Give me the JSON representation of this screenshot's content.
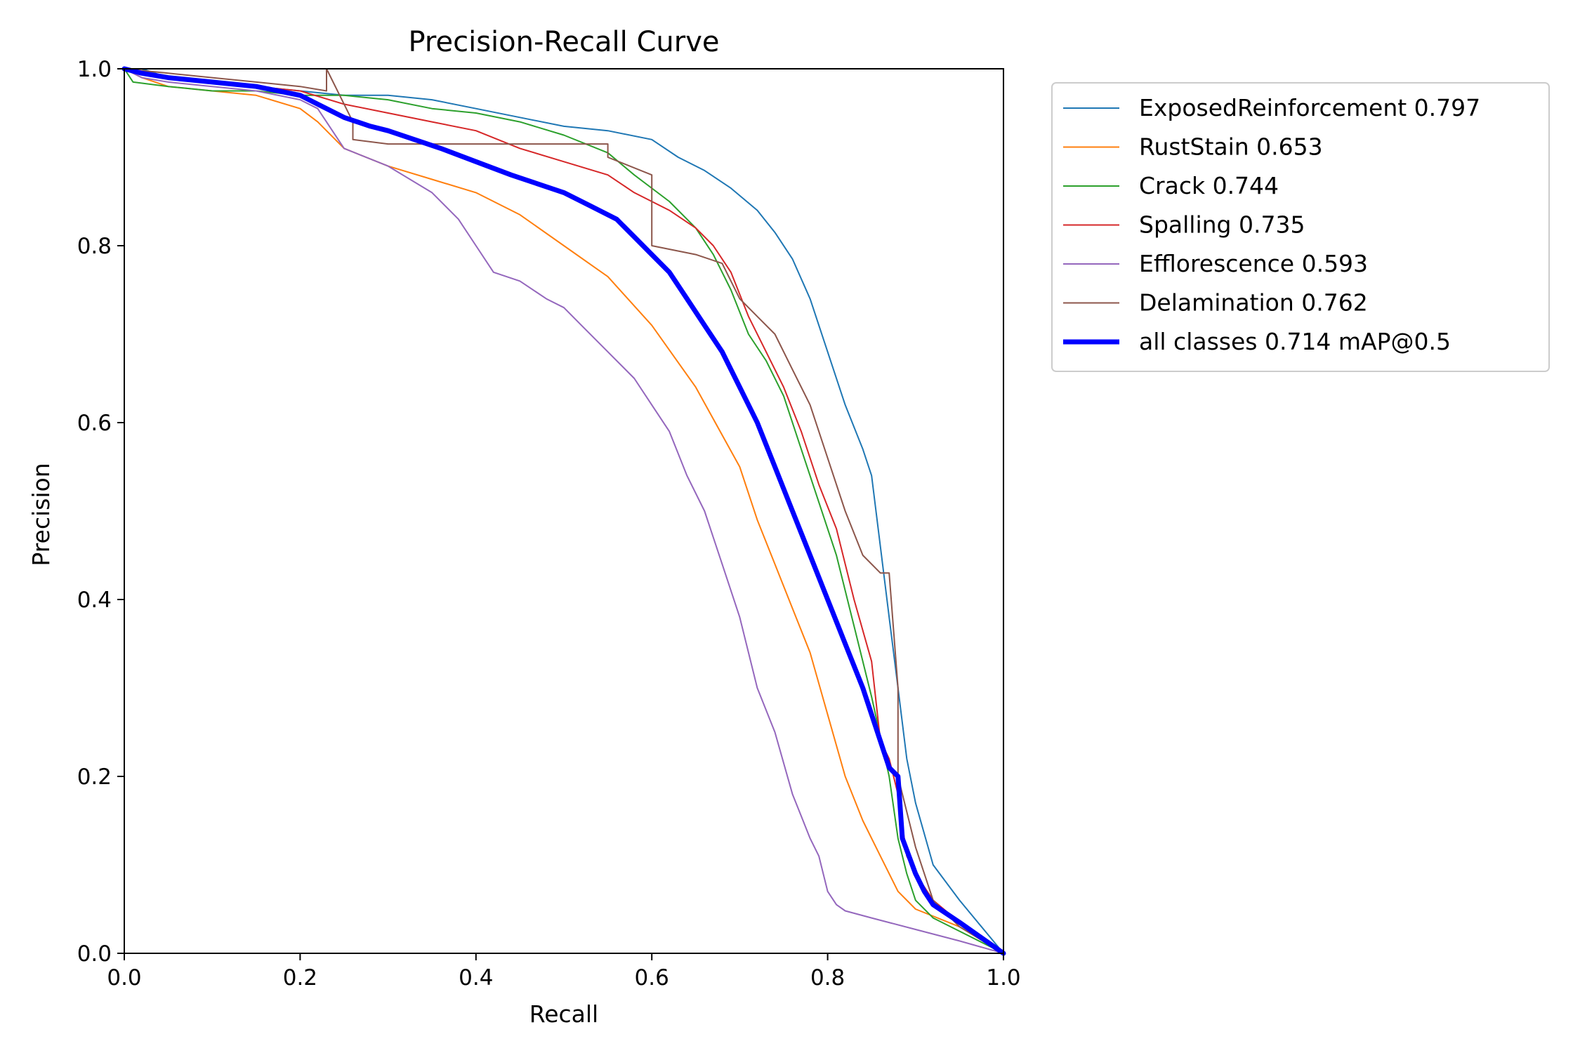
{
  "chart_data": {
    "type": "line",
    "title": "Precision-Recall Curve",
    "xlabel": "Recall",
    "ylabel": "Precision",
    "xlim": [
      0.0,
      1.0
    ],
    "ylim": [
      0.0,
      1.0
    ],
    "xticks": [
      "0.0",
      "0.2",
      "0.4",
      "0.6",
      "0.8",
      "1.0"
    ],
    "yticks": [
      "0.0",
      "0.2",
      "0.4",
      "0.6",
      "0.8",
      "1.0"
    ],
    "grid": false,
    "legend_position": "outside-right-top",
    "series": [
      {
        "name": "ExposedReinforcement 0.797",
        "color": "#1f77b4",
        "width": 2,
        "x": [
          0.0,
          0.02,
          0.05,
          0.1,
          0.15,
          0.2,
          0.25,
          0.3,
          0.35,
          0.4,
          0.45,
          0.5,
          0.55,
          0.6,
          0.63,
          0.66,
          0.69,
          0.72,
          0.74,
          0.76,
          0.78,
          0.8,
          0.82,
          0.84,
          0.85,
          0.86,
          0.87,
          0.88,
          0.89,
          0.9,
          0.92,
          0.95,
          1.0
        ],
        "y": [
          1.0,
          1.0,
          0.99,
          0.985,
          0.98,
          0.975,
          0.97,
          0.97,
          0.965,
          0.955,
          0.945,
          0.935,
          0.93,
          0.92,
          0.9,
          0.885,
          0.865,
          0.84,
          0.815,
          0.785,
          0.74,
          0.68,
          0.62,
          0.57,
          0.54,
          0.46,
          0.38,
          0.3,
          0.22,
          0.17,
          0.1,
          0.06,
          0.0
        ]
      },
      {
        "name": "RustStain 0.653",
        "color": "#ff7f0e",
        "width": 2,
        "x": [
          0.0,
          0.02,
          0.05,
          0.1,
          0.15,
          0.2,
          0.22,
          0.25,
          0.3,
          0.35,
          0.4,
          0.45,
          0.5,
          0.55,
          0.6,
          0.65,
          0.7,
          0.72,
          0.74,
          0.76,
          0.78,
          0.8,
          0.82,
          0.84,
          0.86,
          0.88,
          0.9,
          0.95,
          1.0
        ],
        "y": [
          1.0,
          0.99,
          0.98,
          0.975,
          0.97,
          0.955,
          0.94,
          0.91,
          0.89,
          0.875,
          0.86,
          0.835,
          0.8,
          0.765,
          0.71,
          0.64,
          0.55,
          0.49,
          0.44,
          0.39,
          0.34,
          0.27,
          0.2,
          0.15,
          0.11,
          0.07,
          0.05,
          0.03,
          0.0
        ]
      },
      {
        "name": "Crack 0.744",
        "color": "#2ca02c",
        "width": 2,
        "x": [
          0.0,
          0.01,
          0.05,
          0.1,
          0.15,
          0.2,
          0.25,
          0.3,
          0.35,
          0.4,
          0.45,
          0.5,
          0.55,
          0.58,
          0.62,
          0.65,
          0.67,
          0.69,
          0.71,
          0.73,
          0.75,
          0.77,
          0.79,
          0.81,
          0.83,
          0.85,
          0.87,
          0.88,
          0.89,
          0.9,
          0.92,
          0.95,
          1.0
        ],
        "y": [
          1.0,
          0.985,
          0.98,
          0.975,
          0.975,
          0.97,
          0.97,
          0.965,
          0.955,
          0.95,
          0.94,
          0.925,
          0.905,
          0.88,
          0.85,
          0.82,
          0.79,
          0.75,
          0.7,
          0.67,
          0.63,
          0.57,
          0.51,
          0.45,
          0.37,
          0.29,
          0.2,
          0.13,
          0.09,
          0.06,
          0.04,
          0.025,
          0.0
        ]
      },
      {
        "name": "Spalling 0.735",
        "color": "#d62728",
        "width": 2,
        "x": [
          0.0,
          0.02,
          0.05,
          0.1,
          0.15,
          0.2,
          0.25,
          0.3,
          0.35,
          0.4,
          0.45,
          0.5,
          0.55,
          0.58,
          0.6,
          0.62,
          0.65,
          0.67,
          0.69,
          0.71,
          0.73,
          0.75,
          0.77,
          0.79,
          0.81,
          0.83,
          0.85,
          0.86,
          0.87,
          0.88,
          0.89,
          0.9,
          0.92,
          0.95,
          1.0
        ],
        "y": [
          1.0,
          0.995,
          0.99,
          0.985,
          0.98,
          0.975,
          0.96,
          0.95,
          0.94,
          0.93,
          0.91,
          0.895,
          0.88,
          0.86,
          0.85,
          0.84,
          0.82,
          0.8,
          0.77,
          0.72,
          0.68,
          0.64,
          0.59,
          0.53,
          0.48,
          0.4,
          0.33,
          0.24,
          0.22,
          0.18,
          0.11,
          0.09,
          0.06,
          0.035,
          0.0
        ]
      },
      {
        "name": "Efflorescence 0.593",
        "color": "#9467bd",
        "width": 2,
        "x": [
          0.0,
          0.02,
          0.05,
          0.1,
          0.15,
          0.2,
          0.22,
          0.25,
          0.3,
          0.35,
          0.38,
          0.4,
          0.42,
          0.45,
          0.48,
          0.5,
          0.52,
          0.55,
          0.58,
          0.6,
          0.62,
          0.64,
          0.66,
          0.68,
          0.7,
          0.72,
          0.74,
          0.76,
          0.78,
          0.79,
          0.8,
          0.81,
          0.82,
          0.85,
          0.9,
          0.95,
          1.0
        ],
        "y": [
          1.0,
          0.99,
          0.985,
          0.98,
          0.975,
          0.965,
          0.955,
          0.91,
          0.89,
          0.86,
          0.83,
          0.8,
          0.77,
          0.76,
          0.74,
          0.73,
          0.71,
          0.68,
          0.65,
          0.62,
          0.59,
          0.54,
          0.5,
          0.44,
          0.38,
          0.3,
          0.25,
          0.18,
          0.13,
          0.11,
          0.07,
          0.055,
          0.048,
          0.04,
          0.027,
          0.014,
          0.0
        ]
      },
      {
        "name": "Delamination 0.762",
        "color": "#8c564b",
        "width": 2,
        "x": [
          0.0,
          0.05,
          0.1,
          0.15,
          0.2,
          0.23,
          0.23,
          0.26,
          0.26,
          0.3,
          0.4,
          0.5,
          0.55,
          0.55,
          0.6,
          0.6,
          0.65,
          0.68,
          0.7,
          0.72,
          0.74,
          0.76,
          0.78,
          0.8,
          0.82,
          0.84,
          0.86,
          0.87,
          0.88,
          0.88,
          0.89,
          0.9,
          0.91,
          0.92,
          0.95,
          1.0
        ],
        "y": [
          1.0,
          0.995,
          0.99,
          0.985,
          0.98,
          0.975,
          1.0,
          0.94,
          0.92,
          0.915,
          0.915,
          0.915,
          0.915,
          0.9,
          0.88,
          0.8,
          0.79,
          0.78,
          0.74,
          0.72,
          0.7,
          0.66,
          0.62,
          0.56,
          0.5,
          0.45,
          0.43,
          0.43,
          0.3,
          0.2,
          0.16,
          0.12,
          0.09,
          0.06,
          0.03,
          0.0
        ]
      },
      {
        "name": "all classes 0.714 mAP@0.5",
        "color": "#0000ff",
        "width": 7,
        "x": [
          0.0,
          0.02,
          0.05,
          0.1,
          0.15,
          0.2,
          0.22,
          0.25,
          0.28,
          0.3,
          0.33,
          0.36,
          0.4,
          0.44,
          0.47,
          0.5,
          0.53,
          0.56,
          0.58,
          0.6,
          0.62,
          0.64,
          0.66,
          0.68,
          0.7,
          0.72,
          0.74,
          0.76,
          0.78,
          0.8,
          0.82,
          0.84,
          0.85,
          0.86,
          0.87,
          0.88,
          0.885,
          0.9,
          0.91,
          0.92,
          0.95,
          1.0
        ],
        "y": [
          1.0,
          0.995,
          0.99,
          0.985,
          0.98,
          0.97,
          0.96,
          0.945,
          0.935,
          0.93,
          0.92,
          0.91,
          0.895,
          0.88,
          0.87,
          0.86,
          0.845,
          0.83,
          0.81,
          0.79,
          0.77,
          0.74,
          0.71,
          0.68,
          0.64,
          0.6,
          0.55,
          0.5,
          0.45,
          0.4,
          0.35,
          0.3,
          0.27,
          0.24,
          0.21,
          0.2,
          0.13,
          0.09,
          0.07,
          0.055,
          0.035,
          0.0
        ]
      }
    ]
  }
}
